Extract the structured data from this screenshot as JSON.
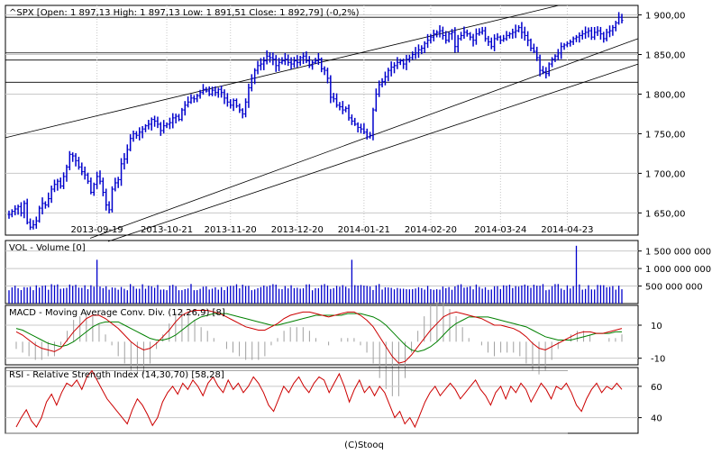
{
  "colors": {
    "price": "#0000cc",
    "volume": "#0000cc",
    "macd_line": "#cc0000",
    "signal_line": "#008000",
    "histogram": "#a0a0a0",
    "rsi": "#cc0000",
    "trendline": "#000000",
    "grid": "#c8c8c8",
    "frame": "#000000"
  },
  "footer": {
    "credit": "(C)Stooq"
  },
  "chart_data": [
    {
      "type": "ohlc",
      "title": "^SPX [Open: 1 897,13  High: 1 897,13  Low: 1 891,51  Close: 1 892,79]  (-0,2%)",
      "x_tick_labels": [
        "2013-09-19",
        "2013-10-21",
        "2013-11-20",
        "2013-12-20",
        "2014-01-21",
        "2014-02-20",
        "2014-03-24",
        "2014-04-23"
      ],
      "y_tick_labels": [
        "1 650,00",
        "1 700,00",
        "1 750,00",
        "1 800,00",
        "1 850,00",
        "1 900,00"
      ],
      "y_ticks": [
        1650,
        1700,
        1750,
        1800,
        1850,
        1900
      ],
      "ylim": [
        1622,
        1912
      ],
      "closes": [
        1648,
        1652,
        1655,
        1658,
        1650,
        1662,
        1638,
        1632,
        1635,
        1640,
        1656,
        1662,
        1660,
        1668,
        1680,
        1686,
        1690,
        1684,
        1696,
        1708,
        1724,
        1722,
        1716,
        1708,
        1702,
        1698,
        1690,
        1676,
        1686,
        1696,
        1690,
        1676,
        1660,
        1654,
        1680,
        1688,
        1692,
        1712,
        1718,
        1730,
        1744,
        1750,
        1748,
        1752,
        1756,
        1760,
        1762,
        1768,
        1766,
        1762,
        1754,
        1760,
        1762,
        1764,
        1770,
        1772,
        1768,
        1780,
        1786,
        1790,
        1795,
        1794,
        1798,
        1802,
        1806,
        1804,
        1800,
        1805,
        1802,
        1806,
        1802,
        1795,
        1790,
        1786,
        1792,
        1785,
        1780,
        1775,
        1790,
        1808,
        1820,
        1830,
        1836,
        1838,
        1842,
        1848,
        1846,
        1844,
        1836,
        1840,
        1842,
        1844,
        1840,
        1838,
        1842,
        1840,
        1846,
        1848,
        1842,
        1836,
        1840,
        1842,
        1844,
        1832,
        1830,
        1820,
        1796,
        1794,
        1786,
        1784,
        1780,
        1782,
        1770,
        1766,
        1762,
        1758,
        1756,
        1752,
        1746,
        1748,
        1780,
        1800,
        1812,
        1816,
        1822,
        1830,
        1834,
        1836,
        1840,
        1842,
        1838,
        1844,
        1846,
        1850,
        1852,
        1856,
        1858,
        1864,
        1868,
        1872,
        1876,
        1878,
        1880,
        1874,
        1868,
        1876,
        1878,
        1860,
        1870,
        1874,
        1878,
        1876,
        1872,
        1868,
        1876,
        1878,
        1880,
        1870,
        1866,
        1860,
        1870,
        1872,
        1868,
        1870,
        1874,
        1876,
        1878,
        1880,
        1884,
        1878,
        1874,
        1868,
        1858,
        1854,
        1846,
        1830,
        1828,
        1826,
        1838,
        1844,
        1848,
        1852,
        1860,
        1862,
        1864,
        1866,
        1870,
        1872,
        1874,
        1876,
        1878,
        1880,
        1872,
        1878,
        1880,
        1876,
        1870,
        1878,
        1880,
        1884,
        1890,
        1897,
        1893
      ]
    },
    {
      "type": "bar",
      "title": "VOL - Volume [0]",
      "y_ticks": [
        500000000,
        1000000000,
        1500000000
      ],
      "y_tick_labels": [
        "500 000 000",
        "1 000 000 000",
        "1 500 000 000"
      ],
      "ylim": [
        0,
        1800000000
      ],
      "spikes": [
        {
          "index": 29,
          "value": 1250000000
        },
        {
          "index": 113,
          "value": 1250000000
        },
        {
          "index": 187,
          "value": 1650000000
        }
      ]
    },
    {
      "type": "line",
      "title": "MACD - Moving Average Conv. Div. (12,26,9) [8]",
      "y_ticks": [
        10,
        -10
      ],
      "y_tick_labels": [
        "10",
        "-10"
      ],
      "ylim": [
        -14,
        22
      ],
      "series": [
        {
          "role": "macd",
          "values": [
            6,
            4,
            1,
            -2,
            -4,
            -5,
            -6,
            -4,
            1,
            6,
            10,
            14,
            16,
            16,
            14,
            11,
            8,
            4,
            0,
            -3,
            -5,
            -4,
            -1,
            3,
            7,
            12,
            16,
            18,
            19,
            19,
            19,
            18,
            17,
            15,
            13,
            11,
            9,
            8,
            7,
            7,
            9,
            11,
            14,
            16,
            17,
            18,
            18,
            17,
            16,
            15,
            16,
            17,
            18,
            18,
            16,
            13,
            9,
            3,
            -3,
            -9,
            -13,
            -12,
            -8,
            -3,
            2,
            7,
            11,
            15,
            17,
            18,
            17,
            16,
            15,
            14,
            12,
            10,
            10,
            9,
            8,
            6,
            3,
            -1,
            -4,
            -5,
            -3,
            -1,
            1,
            3,
            5,
            6,
            6,
            5,
            5,
            6,
            7,
            8
          ]
        },
        {
          "role": "signal",
          "values": [
            8,
            7,
            5,
            3,
            1,
            -1,
            -2,
            -3,
            -2,
            0,
            3,
            6,
            9,
            11,
            12,
            12,
            12,
            10,
            8,
            6,
            4,
            2,
            1,
            1,
            2,
            4,
            7,
            10,
            13,
            15,
            16,
            17,
            17,
            17,
            16,
            15,
            14,
            13,
            12,
            11,
            10,
            10,
            11,
            12,
            13,
            14,
            15,
            16,
            16,
            16,
            16,
            16,
            17,
            17,
            17,
            16,
            15,
            13,
            10,
            6,
            2,
            -2,
            -5,
            -6,
            -5,
            -3,
            0,
            4,
            8,
            11,
            13,
            15,
            15,
            15,
            15,
            14,
            13,
            12,
            11,
            10,
            9,
            7,
            5,
            3,
            2,
            1,
            1,
            1,
            2,
            3,
            4,
            5,
            5,
            5,
            6,
            6
          ]
        }
      ]
    },
    {
      "type": "line",
      "title": "RSI - Relative Strength Index (14,30,70) [58,28]",
      "y_ticks": [
        60,
        40
      ],
      "y_tick_labels": [
        "60",
        "40"
      ],
      "ylim": [
        30,
        72
      ],
      "levels": [
        30,
        70
      ],
      "series": [
        {
          "role": "rsi",
          "values": [
            34,
            40,
            45,
            38,
            34,
            40,
            50,
            55,
            48,
            56,
            62,
            60,
            64,
            58,
            66,
            70,
            64,
            58,
            52,
            48,
            44,
            40,
            36,
            45,
            52,
            48,
            42,
            35,
            40,
            50,
            56,
            60,
            55,
            62,
            58,
            64,
            60,
            54,
            62,
            66,
            60,
            56,
            64,
            58,
            62,
            56,
            60,
            66,
            62,
            56,
            48,
            44,
            52,
            60,
            56,
            62,
            66,
            60,
            56,
            62,
            66,
            64,
            56,
            62,
            68,
            60,
            50,
            58,
            64,
            56,
            60,
            54,
            60,
            56,
            48,
            40,
            44,
            36,
            40,
            34,
            42,
            50,
            56,
            60,
            54,
            58,
            62,
            58,
            52,
            56,
            60,
            64,
            58,
            54,
            48,
            56,
            60,
            52,
            60,
            56,
            62,
            58,
            50,
            56,
            62,
            58,
            52,
            60,
            58,
            62,
            56,
            48,
            44,
            52,
            58,
            62,
            56,
            60,
            58,
            62,
            58
          ]
        }
      ]
    }
  ]
}
